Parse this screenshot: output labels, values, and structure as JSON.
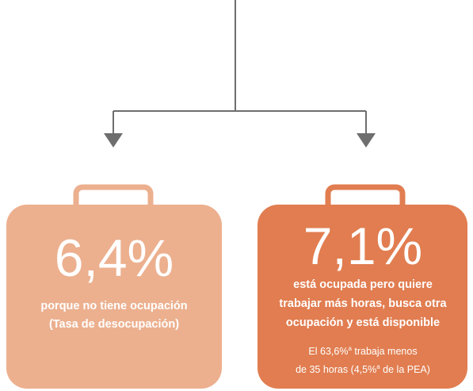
{
  "left": {
    "value": "6,4%",
    "lines": [
      "porque no tiene ocupación",
      "(Tasa de desocupación)"
    ]
  },
  "right": {
    "value": "7,1%",
    "lines": [
      "está ocupada pero quiere",
      "trabajar más horas, busca otra",
      "ocupación y está disponible"
    ],
    "note": [
      [
        "El 63,6%",
        "a",
        " trabaja menos"
      ],
      [
        "de 35 horas (4,5%",
        "a",
        " de la PEA)"
      ]
    ]
  }
}
